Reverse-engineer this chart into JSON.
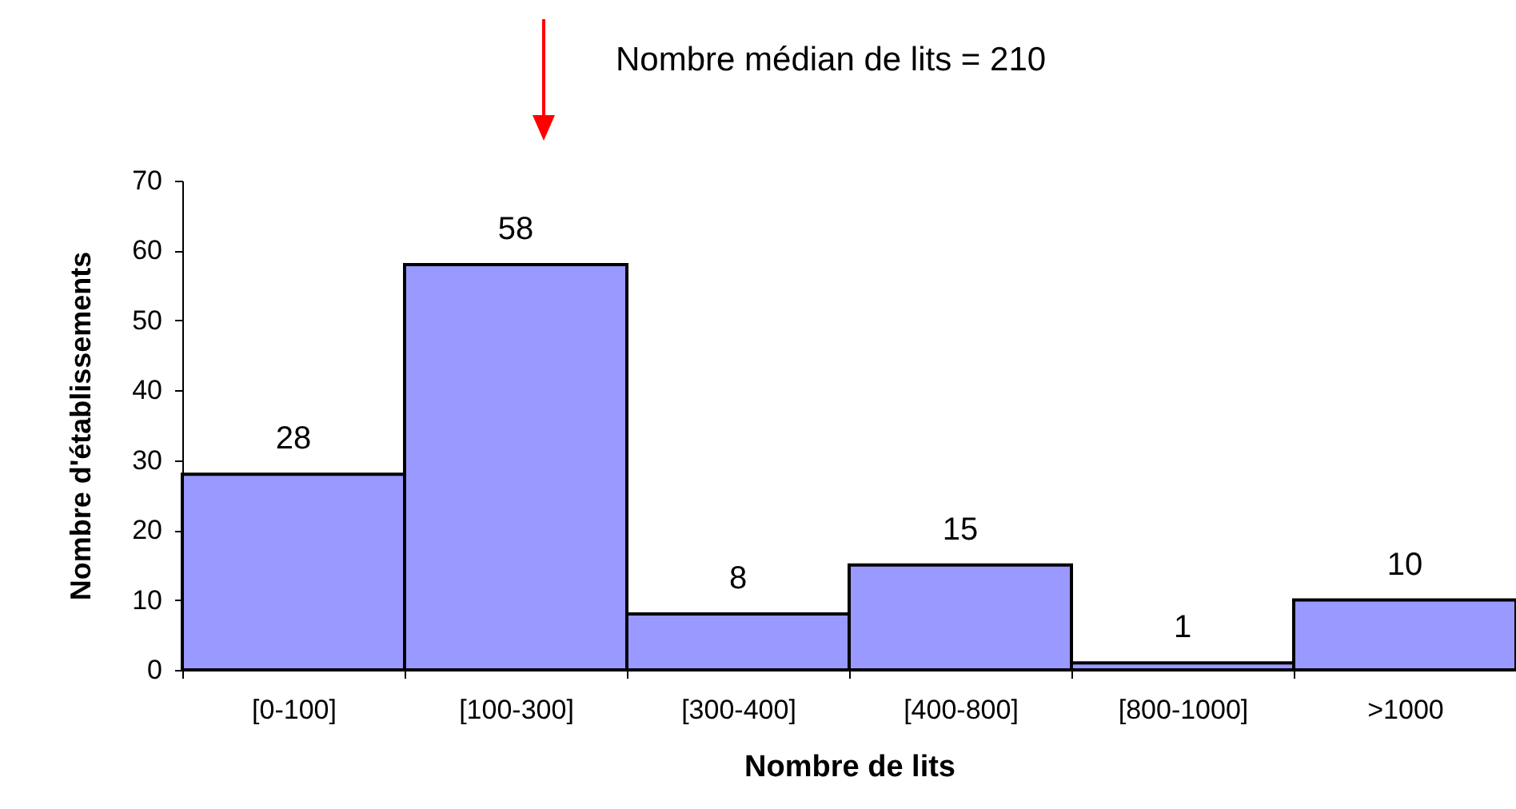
{
  "chart_data": {
    "type": "bar",
    "xlabel": "Nombre de lits",
    "ylabel": "Nombre d'établissements",
    "categories": [
      "[0-100]",
      "[100-300]",
      "[300-400]",
      "[400-800]",
      "[800-1000]",
      ">1000"
    ],
    "values": [
      28,
      58,
      8,
      15,
      1,
      10
    ],
    "color": "#9999ff",
    "ylim": [
      0,
      70
    ],
    "yticks": [
      0,
      10,
      20,
      30,
      40,
      50,
      60,
      70
    ],
    "data_labels": true,
    "annotations": [
      "Nombre médian de lits = 210"
    ]
  }
}
